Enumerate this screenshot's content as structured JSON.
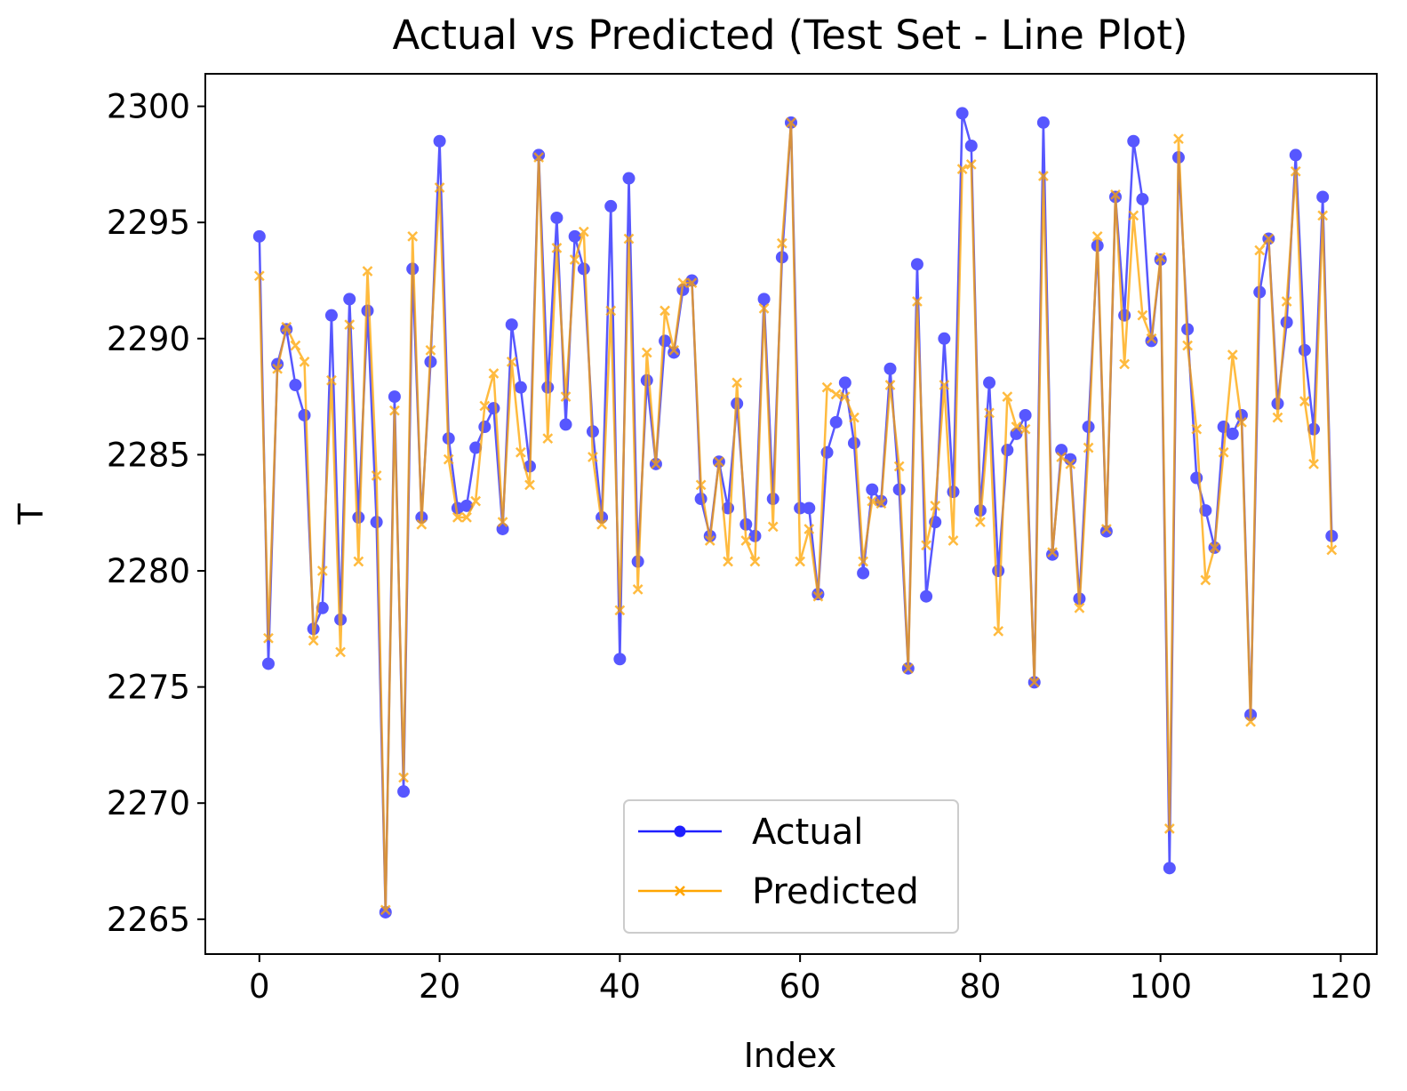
{
  "chart_data": {
    "type": "line",
    "title": "Actual vs Predicted (Test Set - Line Plot)",
    "xlabel": "Index",
    "ylabel": "T",
    "xlim": [
      -6,
      124
    ],
    "ylim": [
      2263.5,
      2301.4
    ],
    "xticks": [
      0,
      20,
      40,
      60,
      80,
      100,
      120
    ],
    "yticks": [
      2265,
      2270,
      2275,
      2280,
      2285,
      2290,
      2295,
      2300
    ],
    "legend_position": "lower-center",
    "grid": false,
    "series": [
      {
        "name": "Actual",
        "color": "#1f1fff",
        "marker": "circle",
        "values": [
          2294.4,
          2276.0,
          2288.9,
          2290.4,
          2288.0,
          2286.7,
          2277.5,
          2278.4,
          2291.0,
          2277.9,
          2291.7,
          2282.3,
          2291.2,
          2282.1,
          2265.3,
          2287.5,
          2270.5,
          2293.0,
          2282.3,
          2289.0,
          2298.5,
          2285.7,
          2282.7,
          2282.8,
          2285.3,
          2286.2,
          2287.0,
          2281.8,
          2290.6,
          2287.9,
          2284.5,
          2297.9,
          2287.9,
          2295.2,
          2286.3,
          2294.4,
          2293.0,
          2286.0,
          2282.3,
          2295.7,
          2276.2,
          2296.9,
          2280.4,
          2288.2,
          2284.6,
          2289.9,
          2289.4,
          2292.1,
          2292.5,
          2283.1,
          2281.5,
          2284.7,
          2282.7,
          2287.2,
          2282.0,
          2281.5,
          2291.7,
          2283.1,
          2293.5,
          2299.3,
          2282.7,
          2282.7,
          2279.0,
          2285.1,
          2286.4,
          2288.1,
          2285.5,
          2279.9,
          2283.5,
          2283.0,
          2288.7,
          2283.5,
          2275.8,
          2293.2,
          2278.9,
          2282.1,
          2290.0,
          2283.4,
          2299.7,
          2298.3,
          2282.6,
          2288.1,
          2280.0,
          2285.2,
          2285.9,
          2286.7,
          2275.2,
          2299.3,
          2280.7,
          2285.2,
          2284.8,
          2278.8,
          2286.2,
          2294.0,
          2281.7,
          2296.1,
          2291.0,
          2298.5,
          2296.0,
          2289.9,
          2293.4,
          2267.2,
          2297.8,
          2290.4,
          2284.0,
          2282.6,
          2281.0,
          2286.2,
          2285.9,
          2286.7,
          2273.8,
          2292.0,
          2294.3,
          2287.2,
          2290.7,
          2297.9,
          2289.5,
          2286.1,
          2296.1,
          2281.5
        ]
      },
      {
        "name": "Predicted",
        "color": "#ffa500",
        "marker": "x",
        "values": [
          2292.7,
          2277.1,
          2288.7,
          2290.5,
          2289.7,
          2289.0,
          2277.0,
          2280.0,
          2288.2,
          2276.5,
          2290.6,
          2280.4,
          2292.9,
          2284.1,
          2265.4,
          2286.9,
          2271.1,
          2294.4,
          2282.0,
          2289.5,
          2296.5,
          2284.8,
          2282.3,
          2282.3,
          2283.0,
          2287.1,
          2288.5,
          2282.1,
          2289.0,
          2285.1,
          2283.7,
          2297.8,
          2285.7,
          2293.9,
          2287.5,
          2293.4,
          2294.6,
          2284.9,
          2282.0,
          2291.2,
          2278.3,
          2294.3,
          2279.2,
          2289.4,
          2284.6,
          2291.2,
          2289.5,
          2292.4,
          2292.4,
          2283.7,
          2281.3,
          2284.7,
          2280.4,
          2288.1,
          2281.3,
          2280.4,
          2291.3,
          2281.9,
          2294.1,
          2299.3,
          2280.4,
          2281.8,
          2278.9,
          2287.9,
          2287.6,
          2287.5,
          2286.6,
          2280.4,
          2283.0,
          2282.9,
          2288.0,
          2284.5,
          2275.8,
          2291.6,
          2281.1,
          2282.8,
          2288.0,
          2281.3,
          2297.3,
          2297.5,
          2282.1,
          2286.8,
          2277.4,
          2287.5,
          2286.2,
          2286.1,
          2275.2,
          2297.0,
          2280.8,
          2284.9,
          2284.6,
          2278.4,
          2285.3,
          2294.4,
          2281.8,
          2296.2,
          2288.9,
          2295.3,
          2291.0,
          2290.0,
          2293.5,
          2268.9,
          2298.6,
          2289.7,
          2286.1,
          2279.6,
          2281.0,
          2285.1,
          2289.3,
          2286.4,
          2273.5,
          2293.8,
          2294.3,
          2286.6,
          2291.6,
          2297.2,
          2287.3,
          2284.6,
          2295.3,
          2280.9
        ]
      }
    ]
  }
}
